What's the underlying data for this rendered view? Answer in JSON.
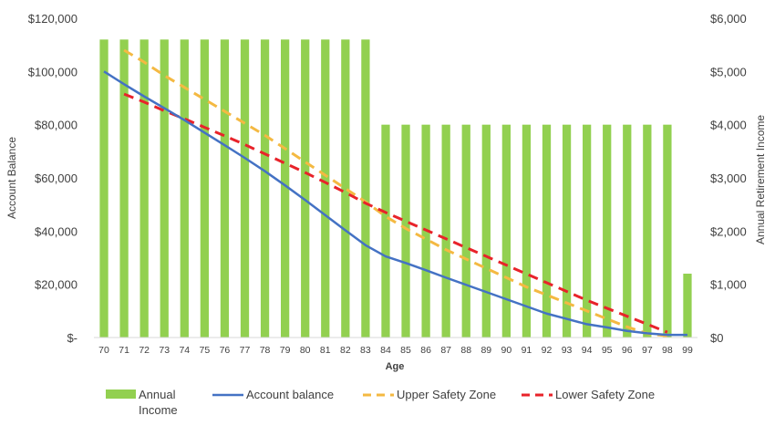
{
  "chart_data": {
    "type": "bar",
    "x": [
      70,
      71,
      72,
      73,
      74,
      75,
      76,
      77,
      78,
      79,
      80,
      81,
      82,
      83,
      84,
      85,
      86,
      87,
      88,
      89,
      90,
      91,
      92,
      93,
      94,
      95,
      96,
      97,
      98,
      99
    ],
    "xlabel": "Age",
    "ylabel_left": "Account Balance",
    "ylabel_right": "Annual Retirement Income",
    "y_left_ticks": [
      "$-",
      "$20,000",
      "$40,000",
      "$60,000",
      "$80,000",
      "$100,000",
      "$120,000"
    ],
    "y_right_ticks": [
      "$0",
      "$1,000",
      "$2,000",
      "$3,000",
      "$4,000",
      "$5,000",
      "$6,000"
    ],
    "ylim_left": [
      0,
      120000
    ],
    "ylim_right": [
      0,
      6000
    ],
    "series": [
      {
        "name": "Annual Income",
        "kind": "bar",
        "axis": "right",
        "color": "#92d050",
        "values": [
          5600,
          5600,
          5600,
          5600,
          5600,
          5600,
          5600,
          5600,
          5600,
          5600,
          5600,
          5600,
          5600,
          5600,
          4000,
          4000,
          4000,
          4000,
          4000,
          4000,
          4000,
          4000,
          4000,
          4000,
          4000,
          4000,
          4000,
          4000,
          4000,
          1200
        ]
      },
      {
        "name": "Account balance",
        "kind": "line",
        "style": "solid",
        "axis": "left",
        "color": "#4472c4",
        "values": [
          100000,
          95200,
          90600,
          86200,
          81700,
          77000,
          72300,
          67500,
          62500,
          57200,
          51700,
          46000,
          40300,
          34700,
          30500,
          28000,
          25300,
          22500,
          19800,
          17100,
          14400,
          11700,
          9000,
          7000,
          5000,
          3800,
          2500,
          1600,
          1000,
          1000
        ]
      },
      {
        "name": "Upper Safety Zone",
        "kind": "line",
        "style": "dashed",
        "axis": "left",
        "color": "#f4b942",
        "values": [
          null,
          108000,
          103500,
          98500,
          94000,
          89500,
          85000,
          80500,
          76000,
          71000,
          66000,
          61000,
          56000,
          51000,
          45500,
          41000,
          37000,
          33000,
          29500,
          26000,
          22500,
          19000,
          16000,
          13000,
          10000,
          7000,
          4000,
          1500,
          600,
          null
        ]
      },
      {
        "name": "Lower Safety Zone",
        "kind": "line",
        "style": "dashed",
        "axis": "left",
        "color": "#e8232a",
        "values": [
          null,
          91500,
          88500,
          85200,
          82200,
          79000,
          75800,
          72500,
          69000,
          65500,
          62000,
          58300,
          54500,
          50500,
          47000,
          43700,
          40400,
          37100,
          33800,
          30500,
          27200,
          23900,
          20600,
          17300,
          14000,
          11000,
          8000,
          5000,
          2000,
          null
        ]
      }
    ],
    "legend": [
      {
        "label": "Annual Income",
        "kind": "bar",
        "color": "#92d050"
      },
      {
        "label": "Account balance",
        "kind": "line",
        "color": "#4472c4"
      },
      {
        "label": "Upper Safety Zone",
        "kind": "dashed",
        "color": "#f4b942"
      },
      {
        "label": "Lower Safety Zone",
        "kind": "dashed",
        "color": "#e8232a"
      }
    ],
    "legend_position": "bottom",
    "grid": false
  }
}
